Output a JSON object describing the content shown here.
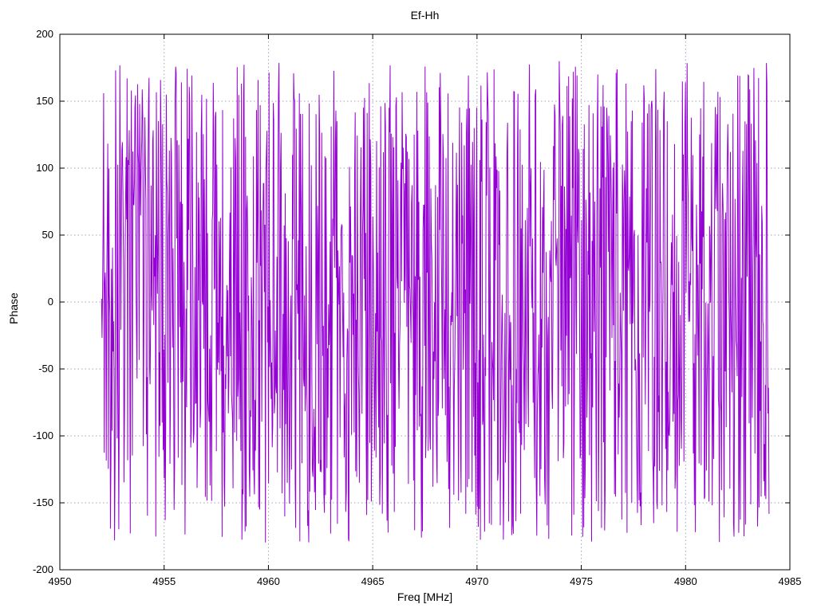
{
  "chart_data": {
    "type": "line",
    "title": "Ef-Hh",
    "xlabel": "Freq [MHz]",
    "ylabel": "Phase",
    "xlim": [
      4950,
      4985
    ],
    "ylim": [
      -200,
      200
    ],
    "x_ticks": [
      4950,
      4955,
      4960,
      4965,
      4970,
      4975,
      4980,
      4985
    ],
    "y_ticks": [
      -200,
      -150,
      -100,
      -50,
      0,
      50,
      100,
      150,
      200
    ],
    "grid": true,
    "legend": "none",
    "line_color": "#9400d3",
    "grid_color": "#a0a0b8",
    "series": [
      {
        "name": "Ef-Hh",
        "x_start": 4952.0,
        "x_end": 4984.0,
        "n_points": 1280,
        "representation": "wrapped interferometric phase noise; values wrap within [-180, 180] deg, dense vertical oscillation across full band",
        "synthesis": {
          "seed": 20240917,
          "step_scale": 320,
          "bias": -0.045,
          "wrap": 180
        }
      }
    ]
  }
}
